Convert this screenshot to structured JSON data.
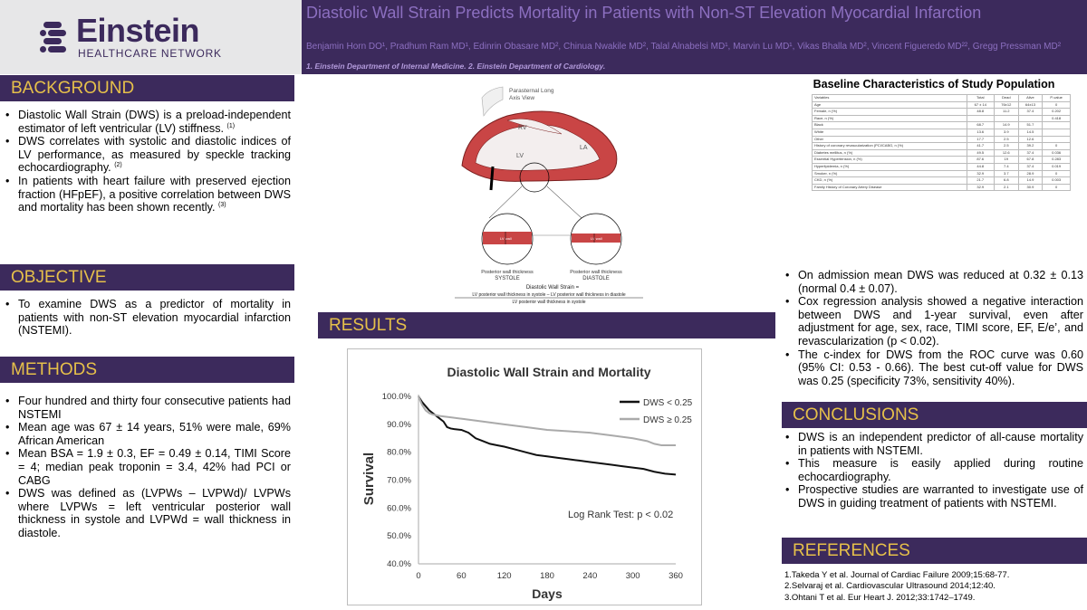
{
  "header": {
    "logo_name": "Einstein",
    "logo_sub": "HEALTHCARE NETWORK",
    "title": "Diastolic Wall Strain Predicts Mortality in Patients with Non-ST Elevation Myocardial Infarction",
    "authors": "Benjamin Horn DO¹, Pradhum Ram MD¹, Edinrin Obasare MD², Chinua Nwakile MD², Talal Alnabelsi MD¹, Marvin Lu MD¹, Vikas Bhalla MD², Vincent Figueredo MD²², Gregg Pressman MD²",
    "affiliations": "1. Einstein Department of Internal Medicine.  2. Einstein Department of Cardiology."
  },
  "colors": {
    "brand_purple": "#3c2a5c",
    "heading_gold": "#e6c04a",
    "title_lavender": "#8c6fc0"
  },
  "background": {
    "heading": "BACKGROUND",
    "items": [
      {
        "text": "Diastolic Wall Strain (DWS) is a preload-independent estimator of left ventricular (LV) stiffness.",
        "ref": "(1)"
      },
      {
        "text": "DWS correlates with systolic and diastolic indices of LV performance, as measured  by speckle tracking echocardiography.",
        "ref": "(2)"
      },
      {
        "text": "In patients with heart failure with preserved ejection fraction (HFpEF), a positive correlation between DWS and mortality has been shown recently.",
        "ref": "(3)"
      }
    ]
  },
  "objective": {
    "heading": "OBJECTIVE",
    "items": [
      "To examine DWS as a predictor of mortality in patients with non-ST elevation myocardial infarction (NSTEMI)."
    ]
  },
  "methods": {
    "heading": "METHODS",
    "items": [
      "Four hundred and thirty four consecutive patients had NSTEMI",
      "Mean age was 67 ± 14 years, 51% were male, 69% African American",
      "Mean BSA = 1.9 ± 0.3, EF = 0.49 ± 0.14, TIMI Score = 4; median peak troponin = 3.4, 42% had PCI or CABG",
      "DWS was defined as (LVPWs – LVPWd)/ LVPWs where LVPWs = left ventricular posterior wall thickness in systole and LVPWd = wall thickness in diastole."
    ]
  },
  "diagram": {
    "view_label_1": "Parasternal Long",
    "view_label_2": "Axis View",
    "rv": "RV",
    "lv": "LV",
    "la": "LA",
    "left_caption_1": "Posterior wall thickness",
    "left_caption_2": "SYSTOLE",
    "right_caption_1": "Posterior wall thickness",
    "right_caption_2": "DIASTOLE",
    "inset_label": "LV wall",
    "formula_title": "Diastolic Wall Strain =",
    "formula_num": "LV posterior wall thickness in systole – LV posterior wall thickness in diastole",
    "formula_den": "LV posterior wall thickness in systole"
  },
  "results": {
    "heading": "RESULTS"
  },
  "chart_data": {
    "type": "line",
    "title": "Diastolic Wall Strain and Mortality",
    "xlabel": "Days",
    "ylabel": "Survival",
    "xlim": [
      0,
      360
    ],
    "ylim": [
      40,
      100
    ],
    "xticks": [
      "0",
      "60",
      "120",
      "180",
      "240",
      "300",
      "360"
    ],
    "yticks": [
      "40.0%",
      "50.0%",
      "60.0%",
      "70.0%",
      "80.0%",
      "90.0%",
      "100.0%"
    ],
    "annotation": "Log Rank Test: p < 0.02",
    "legend_position": "top-right",
    "series": [
      {
        "name": "DWS < 0.25",
        "color": "#111111",
        "x": [
          0,
          5,
          10,
          15,
          20,
          25,
          30,
          35,
          40,
          45,
          50,
          60,
          70,
          80,
          90,
          100,
          110,
          120,
          135,
          150,
          165,
          180,
          195,
          210,
          225,
          240,
          255,
          270,
          285,
          300,
          315,
          330,
          345,
          360
        ],
        "y": [
          100,
          98,
          96.5,
          95,
          94,
          93,
          92,
          91,
          89,
          88.5,
          88.3,
          88,
          87,
          85,
          84,
          83,
          82.5,
          82,
          81,
          80,
          79,
          78.5,
          78,
          77.5,
          77,
          76.5,
          76,
          75.5,
          75,
          74.5,
          74,
          73,
          72.3,
          72
        ]
      },
      {
        "name": "DWS ≥ 0.25",
        "color": "#aaaaaa",
        "x": [
          0,
          5,
          10,
          15,
          20,
          30,
          45,
          60,
          90,
          120,
          150,
          180,
          210,
          240,
          270,
          300,
          320,
          330,
          340,
          360
        ],
        "y": [
          100,
          97,
          95,
          94,
          93.5,
          93,
          92.5,
          92,
          91,
          90,
          89,
          88,
          87.5,
          87,
          86,
          85,
          84,
          83,
          82.5,
          82.5
        ]
      }
    ]
  },
  "baseline": {
    "title": "Baseline Characteristics of Study Population",
    "columns": [
      "Variables",
      "Total",
      "Dead",
      "Alive",
      "P-value"
    ],
    "rows": [
      [
        "Age",
        "67 ± 14",
        "76±12",
        "64±13",
        "0"
      ],
      [
        "Female, n (%)",
        "48.8",
        "11.2",
        "37.4",
        "0.202"
      ],
      [
        "Race, n (%)",
        "",
        "",
        "",
        "0.418"
      ],
      [
        "Black",
        "68.7",
        "14.9",
        "51.7",
        ""
      ],
      [
        "White",
        "13.6",
        "3.9",
        "14.5",
        ""
      ],
      [
        "Other",
        "17.7",
        "2.5",
        "12.6",
        ""
      ],
      [
        "History of coronary revascularization (PCI/CABG, n (%)",
        "41.7",
        "2.5",
        "39.2",
        "0"
      ],
      [
        "Diabetes mellitus, n (%)",
        "49.5",
        "12.6",
        "37.4",
        "0.036"
      ],
      [
        "Essential Hypertension, n (%)",
        "87.6",
        "19",
        "67.8",
        "0.283"
      ],
      [
        "Hyperlipidemia, n (%)",
        "44.8",
        "7.4",
        "37.4",
        "0.019"
      ],
      [
        "Smoker, n (%)",
        "32.9",
        "3.7",
        "28.9",
        "0"
      ],
      [
        "CKD, n (%)",
        "21.7",
        "6.8",
        "14.9",
        "0.003"
      ],
      [
        "Family History of Coronary Artery Disease",
        "32.9",
        "2.1",
        "30.9",
        "0"
      ]
    ]
  },
  "findings": {
    "items": [
      "On admission mean DWS was reduced at 0.32 ± 0.13 (normal 0.4 ± 0.07).",
      "Cox regression analysis showed a negative interaction between DWS and 1-year survival, even after adjustment for age, sex, race, TIMI score, EF, E/e’, and revascularization (p < 0.02).",
      "The c-index for DWS from the ROC curve was 0.60 (95% CI: 0.53 - 0.66). The best cut-off value for DWS was 0.25 (specificity 73%, sensitivity 40%)."
    ]
  },
  "conclusions": {
    "heading": "CONCLUSIONS",
    "items": [
      "DWS is an independent predictor of all-cause mortality in patients with NSTEMI.",
      "This measure is easily applied during routine echocardiography.",
      "Prospective studies are warranted to investigate use of DWS in guiding treatment of patients with NSTEMI."
    ]
  },
  "references": {
    "heading": "REFERENCES",
    "items": [
      "1.Takeda Y et al. Journal of Cardiac Failure  2009;15:68-77.",
      "2.Selvaraj et al. Cardiovascular Ultrasound 2014;12:40.",
      "3.Ohtani T et al. Eur Heart J. 2012;33:1742–1749."
    ]
  }
}
